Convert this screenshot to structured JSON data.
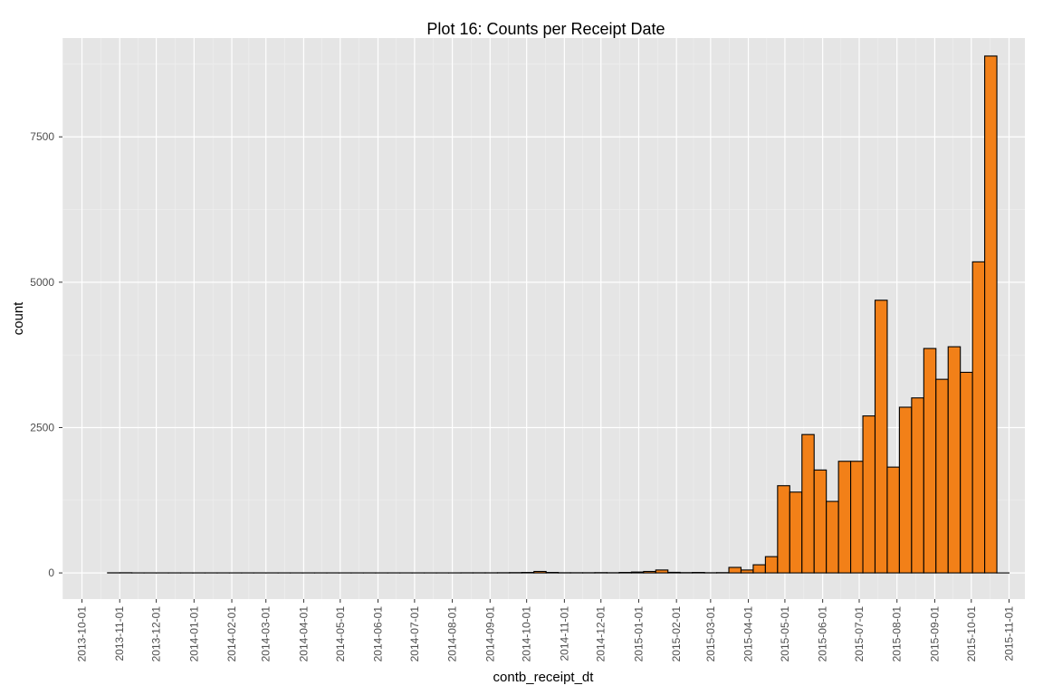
{
  "chart_data": {
    "type": "bar",
    "title": "Plot 16: Counts per Receipt Date",
    "xlabel": "contb_receipt_dt",
    "ylabel": "count",
    "ylim": [
      -450,
      9200
    ],
    "xlim": [
      "2013-09-15",
      "2015-11-14"
    ],
    "y_ticks": [
      0,
      2500,
      5000,
      7500
    ],
    "y_tick_labels": [
      "0",
      "2500",
      "5000",
      "7500"
    ],
    "x_ticks": [
      "2013-10-01",
      "2013-11-01",
      "2013-12-01",
      "2014-01-01",
      "2014-02-01",
      "2014-03-01",
      "2014-04-01",
      "2014-05-01",
      "2014-06-01",
      "2014-07-01",
      "2014-08-01",
      "2014-09-01",
      "2014-10-01",
      "2014-11-01",
      "2014-12-01",
      "2015-01-01",
      "2015-02-01",
      "2015-03-01",
      "2015-04-01",
      "2015-05-01",
      "2015-06-01",
      "2015-07-01",
      "2015-08-01",
      "2015-09-01",
      "2015-10-01",
      "2015-11-01"
    ],
    "bin_start": "2013-10-22",
    "bin_width_days": 10,
    "values": [
      2,
      3,
      1,
      1,
      1,
      1,
      1,
      1,
      1,
      1,
      1,
      1,
      1,
      1,
      1,
      1,
      1,
      1,
      1,
      1,
      1,
      1,
      1,
      1,
      1,
      1,
      1,
      1,
      1,
      2,
      2,
      2,
      3,
      5,
      8,
      25,
      8,
      3,
      3,
      3,
      5,
      3,
      8,
      15,
      25,
      50,
      10,
      5,
      8,
      3,
      5,
      95,
      50,
      140,
      280,
      1500,
      1390,
      2380,
      1770,
      1230,
      1920,
      1920,
      2700,
      4690,
      1820,
      2850,
      3010,
      3860,
      3330,
      3890,
      3450,
      5350,
      8890,
      0
    ],
    "grid": true,
    "legend": "none",
    "colors": {
      "bar_fill": "#f28018",
      "bar_stroke": "#000000",
      "panel": "#e5e5e5",
      "grid_major": "#ffffff",
      "grid_minor": "#f0f0f0",
      "tick_text": "#4d4d4d"
    }
  }
}
